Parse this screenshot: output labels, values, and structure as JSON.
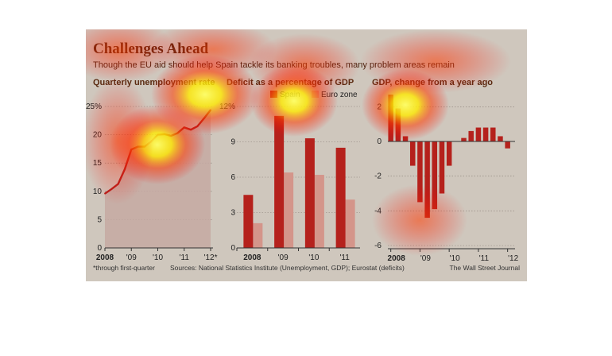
{
  "header": {
    "title": "Challenges Ahead",
    "subtitle": "Though the EU aid should help Spain tackle its banking troubles, many problem areas remain"
  },
  "footer": {
    "footnote": "*through first-quarter",
    "sources": "Sources: National Statistics Institute (Unemployment, GDP); Eurostat (deficits)",
    "credit": "The Wall Street Journal"
  },
  "colors": {
    "panel_bg": "#cfc7bd",
    "spain": "#b5211c",
    "euro_zone": "#d4958a",
    "line": "#b5211c",
    "area": "#c5a9a2",
    "heatmap_hot": "#ffff66",
    "heatmap_mid": "#ff3b00"
  },
  "chart_data": [
    {
      "type": "line",
      "title": "Quarterly unemployment rate",
      "x_ticks": [
        "2008",
        "'09",
        "'10",
        "'11",
        "'12*"
      ],
      "y_ticks": [
        "0",
        "5",
        "10",
        "15",
        "20",
        "25%"
      ],
      "ylim": [
        0,
        25
      ],
      "x_range": [
        2008.0,
        2012.0
      ],
      "x": [
        2008.0,
        2008.25,
        2008.5,
        2008.75,
        2009.0,
        2009.25,
        2009.5,
        2009.75,
        2010.0,
        2010.25,
        2010.5,
        2010.75,
        2011.0,
        2011.25,
        2011.5,
        2011.75,
        2012.0
      ],
      "values": [
        9.6,
        10.4,
        11.3,
        13.9,
        17.4,
        17.9,
        17.9,
        18.8,
        20.0,
        20.1,
        19.8,
        20.3,
        21.3,
        20.9,
        21.5,
        22.9,
        24.4
      ],
      "area_fill": true
    },
    {
      "type": "bar",
      "title": "Deficit as a percentage of GDP",
      "categories": [
        "2008",
        "'09",
        "'10",
        "'11"
      ],
      "series": [
        {
          "name": "Spain",
          "values": [
            4.5,
            11.2,
            9.3,
            8.5
          ]
        },
        {
          "name": "Euro zone",
          "values": [
            2.1,
            6.4,
            6.2,
            4.1
          ]
        }
      ],
      "y_ticks": [
        "0",
        "3",
        "6",
        "9",
        "12%"
      ],
      "ylim": [
        0,
        12
      ],
      "legend": "top"
    },
    {
      "type": "bar",
      "title": "GDP, change from a year ago",
      "x_ticks": [
        "2008",
        "'09",
        "'10",
        "'11",
        "'12"
      ],
      "y_ticks": [
        "-6",
        "-4",
        "-2",
        "0",
        "2"
      ],
      "ylim": [
        -6,
        2.5
      ],
      "x_range": [
        2007.9,
        2012.2
      ],
      "x": [
        2008.0,
        2008.25,
        2008.5,
        2008.75,
        2009.0,
        2009.25,
        2009.5,
        2009.75,
        2010.0,
        2010.25,
        2010.5,
        2010.75,
        2011.0,
        2011.25,
        2011.5,
        2011.75,
        2012.0
      ],
      "values": [
        2.7,
        1.9,
        0.3,
        -1.4,
        -3.5,
        -4.4,
        -3.9,
        -3.0,
        -1.4,
        0.0,
        0.2,
        0.6,
        0.8,
        0.8,
        0.8,
        0.3,
        -0.4
      ]
    }
  ]
}
